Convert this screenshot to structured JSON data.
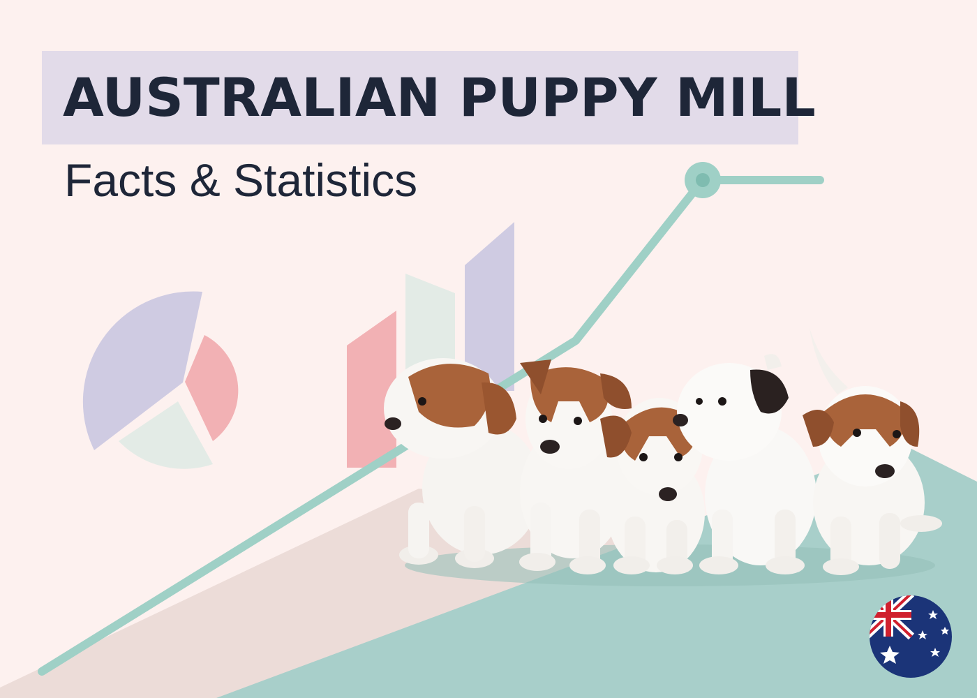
{
  "title": "AUSTRALIAN PUPPY MILL",
  "subtitle": "Facts & Statistics",
  "colors": {
    "background": "#fdf1ef",
    "title_band": "#e2dbe9",
    "text": "#1e2638",
    "teal": "#9fd0c6",
    "teal_floor": "#a8cfca",
    "lavender": "#cfcbe2",
    "pink": "#f2b1b4",
    "mint": "#e3ebe6",
    "flag_blue": "#1b3478",
    "flag_red": "#d0202e"
  },
  "illustration": {
    "pie_icon": "pie-chart-icon",
    "bars_icon": "bar-chart-icon",
    "trend_icon": "trend-line-icon",
    "puppies": "puppies-illustration",
    "flag": "australia-flag-icon"
  }
}
